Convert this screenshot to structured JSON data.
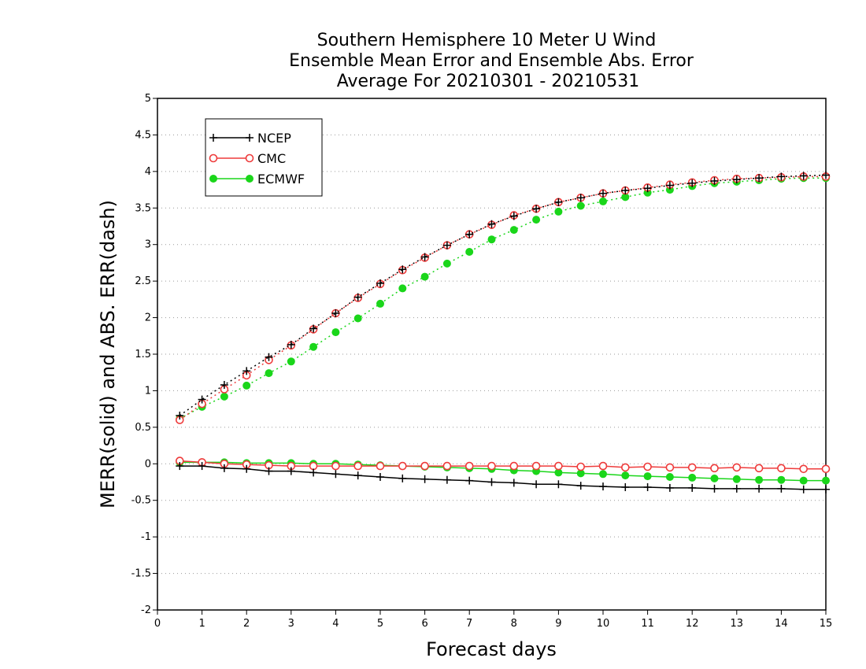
{
  "chart_data": {
    "type": "line",
    "title": [
      "Southern Hemisphere 10 Meter U Wind",
      "Ensemble Mean Error and Ensemble Abs. Error",
      "Average For 20210301 - 20210531"
    ],
    "xlabel": "Forecast days",
    "ylabel": "MERR(solid) and ABS. ERR(dash)",
    "xlim": [
      0,
      15
    ],
    "ylim": [
      -2,
      5
    ],
    "xticks": [
      0,
      1,
      2,
      3,
      4,
      5,
      6,
      7,
      8,
      9,
      10,
      11,
      12,
      13,
      14,
      15
    ],
    "yticks": [
      5,
      4.5,
      4,
      3.5,
      3,
      2.5,
      2,
      1.5,
      1,
      0.5,
      0,
      -0.5,
      -1,
      -1.5,
      -2
    ],
    "grid": "horizontal-dotted",
    "legend_position": "top-left",
    "x": [
      0.5,
      1,
      1.5,
      2,
      2.5,
      3,
      3.5,
      4,
      4.5,
      5,
      5.5,
      6,
      6.5,
      7,
      7.5,
      8,
      8.5,
      9,
      9.5,
      10,
      10.5,
      11,
      11.5,
      12,
      12.5,
      13,
      13.5,
      14,
      14.5,
      15
    ],
    "series": [
      {
        "name": "NCEP",
        "color": "#000000",
        "marker": "plus",
        "mean_error": [
          -0.03,
          -0.03,
          -0.06,
          -0.07,
          -0.1,
          -0.1,
          -0.12,
          -0.14,
          -0.16,
          -0.18,
          -0.2,
          -0.21,
          -0.22,
          -0.23,
          -0.25,
          -0.26,
          -0.28,
          -0.28,
          -0.3,
          -0.31,
          -0.32,
          -0.32,
          -0.33,
          -0.33,
          -0.34,
          -0.34,
          -0.34,
          -0.34,
          -0.35,
          -0.35
        ],
        "abs_error": [
          0.66,
          0.88,
          1.08,
          1.27,
          1.46,
          1.63,
          1.85,
          2.06,
          2.28,
          2.47,
          2.66,
          2.83,
          2.99,
          3.14,
          3.28,
          3.39,
          3.49,
          3.58,
          3.64,
          3.7,
          3.74,
          3.77,
          3.81,
          3.84,
          3.87,
          3.89,
          3.91,
          3.93,
          3.94,
          3.95
        ]
      },
      {
        "name": "CMC",
        "color": "#ee3b3b",
        "marker": "open-circle",
        "mean_error": [
          0.04,
          0.02,
          0.0,
          -0.01,
          -0.02,
          -0.03,
          -0.03,
          -0.03,
          -0.03,
          -0.03,
          -0.03,
          -0.03,
          -0.03,
          -0.03,
          -0.03,
          -0.03,
          -0.03,
          -0.03,
          -0.04,
          -0.03,
          -0.05,
          -0.04,
          -0.05,
          -0.05,
          -0.06,
          -0.05,
          -0.06,
          -0.06,
          -0.07,
          -0.07
        ],
        "abs_error": [
          0.6,
          0.82,
          1.02,
          1.21,
          1.42,
          1.62,
          1.84,
          2.06,
          2.27,
          2.46,
          2.65,
          2.82,
          2.99,
          3.14,
          3.27,
          3.4,
          3.49,
          3.58,
          3.64,
          3.7,
          3.74,
          3.78,
          3.82,
          3.85,
          3.88,
          3.9,
          3.91,
          3.92,
          3.93,
          3.93
        ]
      },
      {
        "name": "ECMWF",
        "color": "#1ad61a",
        "marker": "filled-circle",
        "mean_error": [
          0.02,
          0.02,
          0.02,
          0.01,
          0.01,
          0.01,
          0.0,
          0.0,
          -0.01,
          -0.02,
          -0.03,
          -0.04,
          -0.05,
          -0.06,
          -0.07,
          -0.09,
          -0.1,
          -0.12,
          -0.13,
          -0.14,
          -0.16,
          -0.17,
          -0.18,
          -0.19,
          -0.2,
          -0.21,
          -0.22,
          -0.22,
          -0.23,
          -0.23
        ],
        "abs_error": [
          0.62,
          0.78,
          0.92,
          1.07,
          1.24,
          1.4,
          1.6,
          1.8,
          1.99,
          2.19,
          2.4,
          2.56,
          2.74,
          2.9,
          3.07,
          3.2,
          3.34,
          3.45,
          3.53,
          3.59,
          3.65,
          3.71,
          3.75,
          3.8,
          3.84,
          3.86,
          3.88,
          3.9,
          3.91,
          3.91
        ]
      }
    ]
  }
}
